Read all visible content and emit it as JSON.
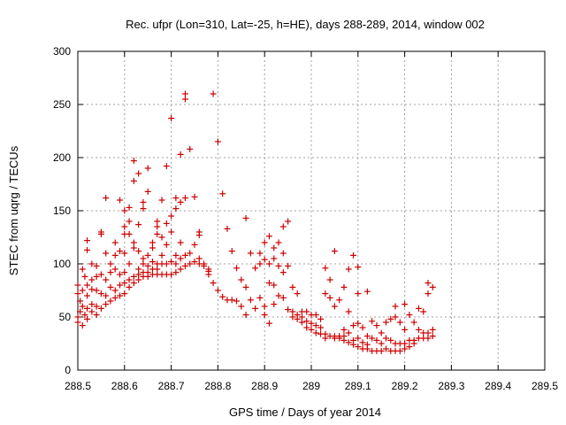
{
  "chart_data": {
    "type": "scatter",
    "title": "Rec. ufpr (Lon=310, Lat=-25, h=HE), days 288-289, 2014, window 002",
    "xlabel": "GPS time / Days of year 2014",
    "ylabel": "STEC from uqrg / TECUs",
    "xlim": [
      288.5,
      289.5
    ],
    "ylim": [
      0,
      300
    ],
    "xticks": [
      288.5,
      288.6,
      288.7,
      288.8,
      288.9,
      289,
      289.1,
      289.2,
      289.3,
      289.4,
      289.5
    ],
    "xtick_labels": [
      "288.5",
      "288.6",
      "288.7",
      "288.8",
      "288.9",
      "289",
      "289.1",
      "289.2",
      "289.3",
      "289.4",
      "289.5"
    ],
    "yticks": [
      0,
      50,
      100,
      150,
      200,
      250,
      300
    ],
    "ytick_labels": [
      "0",
      "50",
      "100",
      "150",
      "200",
      "250",
      "300"
    ],
    "grid": true,
    "marker": "+",
    "color": "#cc0000",
    "series": [
      {
        "name": "STEC",
        "points": [
          [
            288.5,
            80
          ],
          [
            288.5,
            72
          ],
          [
            288.5,
            50
          ],
          [
            288.5,
            45
          ],
          [
            288.505,
            65
          ],
          [
            288.505,
            55
          ],
          [
            288.51,
            95
          ],
          [
            288.51,
            75
          ],
          [
            288.51,
            60
          ],
          [
            288.51,
            42
          ],
          [
            288.515,
            88
          ],
          [
            288.515,
            52
          ],
          [
            288.52,
            122
          ],
          [
            288.52,
            113
          ],
          [
            288.52,
            80
          ],
          [
            288.52,
            70
          ],
          [
            288.52,
            58
          ],
          [
            288.52,
            48
          ],
          [
            288.53,
            100
          ],
          [
            288.53,
            85
          ],
          [
            288.53,
            76
          ],
          [
            288.53,
            62
          ],
          [
            288.53,
            55
          ],
          [
            288.54,
            98
          ],
          [
            288.54,
            88
          ],
          [
            288.54,
            75
          ],
          [
            288.54,
            60
          ],
          [
            288.54,
            52
          ],
          [
            288.55,
            130
          ],
          [
            288.55,
            128
          ],
          [
            288.55,
            90
          ],
          [
            288.55,
            72
          ],
          [
            288.55,
            58
          ],
          [
            288.56,
            162
          ],
          [
            288.56,
            110
          ],
          [
            288.56,
            85
          ],
          [
            288.56,
            70
          ],
          [
            288.56,
            62
          ],
          [
            288.57,
            100
          ],
          [
            288.57,
            92
          ],
          [
            288.57,
            78
          ],
          [
            288.57,
            65
          ],
          [
            288.58,
            120
          ],
          [
            288.58,
            108
          ],
          [
            288.58,
            95
          ],
          [
            288.58,
            75
          ],
          [
            288.58,
            68
          ],
          [
            288.59,
            160
          ],
          [
            288.59,
            112
          ],
          [
            288.59,
            90
          ],
          [
            288.59,
            80
          ],
          [
            288.59,
            70
          ],
          [
            288.6,
            150
          ],
          [
            288.6,
            135
          ],
          [
            288.6,
            128
          ],
          [
            288.6,
            110
          ],
          [
            288.6,
            92
          ],
          [
            288.6,
            82
          ],
          [
            288.6,
            72
          ],
          [
            288.61,
            153
          ],
          [
            288.61,
            140
          ],
          [
            288.61,
            128
          ],
          [
            288.61,
            100
          ],
          [
            288.61,
            85
          ],
          [
            288.61,
            78
          ],
          [
            288.62,
            197
          ],
          [
            288.62,
            178
          ],
          [
            288.62,
            120
          ],
          [
            288.62,
            115
          ],
          [
            288.62,
            88
          ],
          [
            288.62,
            82
          ],
          [
            288.63,
            185
          ],
          [
            288.63,
            137
          ],
          [
            288.63,
            112
          ],
          [
            288.63,
            95
          ],
          [
            288.63,
            90
          ],
          [
            288.63,
            85
          ],
          [
            288.64,
            158
          ],
          [
            288.64,
            152
          ],
          [
            288.64,
            105
          ],
          [
            288.64,
            100
          ],
          [
            288.64,
            92
          ],
          [
            288.64,
            88
          ],
          [
            288.65,
            190
          ],
          [
            288.65,
            168
          ],
          [
            288.65,
            108
          ],
          [
            288.65,
            98
          ],
          [
            288.65,
            92
          ],
          [
            288.65,
            88
          ],
          [
            288.66,
            120
          ],
          [
            288.66,
            115
          ],
          [
            288.66,
            102
          ],
          [
            288.66,
            95
          ],
          [
            288.66,
            90
          ],
          [
            288.67,
            140
          ],
          [
            288.67,
            135
          ],
          [
            288.67,
            128
          ],
          [
            288.67,
            100
          ],
          [
            288.67,
            95
          ],
          [
            288.67,
            90
          ],
          [
            288.68,
            160
          ],
          [
            288.68,
            125
          ],
          [
            288.68,
            108
          ],
          [
            288.68,
            100
          ],
          [
            288.68,
            90
          ],
          [
            288.69,
            192
          ],
          [
            288.69,
            138
          ],
          [
            288.69,
            118
          ],
          [
            288.69,
            100
          ],
          [
            288.69,
            90
          ],
          [
            288.7,
            237
          ],
          [
            288.7,
            145
          ],
          [
            288.7,
            130
          ],
          [
            288.7,
            102
          ],
          [
            288.7,
            90
          ],
          [
            288.71,
            162
          ],
          [
            288.71,
            152
          ],
          [
            288.71,
            108
          ],
          [
            288.71,
            100
          ],
          [
            288.71,
            92
          ],
          [
            288.72,
            203
          ],
          [
            288.72,
            158
          ],
          [
            288.72,
            120
          ],
          [
            288.72,
            105
          ],
          [
            288.72,
            95
          ],
          [
            288.73,
            260
          ],
          [
            288.73,
            255
          ],
          [
            288.73,
            162
          ],
          [
            288.73,
            108
          ],
          [
            288.73,
            98
          ],
          [
            288.74,
            208
          ],
          [
            288.74,
            110
          ],
          [
            288.74,
            100
          ],
          [
            288.75,
            163
          ],
          [
            288.75,
            118
          ],
          [
            288.75,
            102
          ],
          [
            288.76,
            130
          ],
          [
            288.76,
            127
          ],
          [
            288.76,
            105
          ],
          [
            288.76,
            100
          ],
          [
            288.77,
            100
          ],
          [
            288.77,
            98
          ],
          [
            288.78,
            95
          ],
          [
            288.78,
            93
          ],
          [
            288.78,
            90
          ],
          [
            288.79,
            260
          ],
          [
            288.79,
            82
          ],
          [
            288.8,
            215
          ],
          [
            288.8,
            75
          ],
          [
            288.81,
            166
          ],
          [
            288.81,
            69
          ],
          [
            288.82,
            133
          ],
          [
            288.82,
            66
          ],
          [
            288.83,
            112
          ],
          [
            288.83,
            66
          ],
          [
            288.84,
            96
          ],
          [
            288.84,
            65
          ],
          [
            288.85,
            85
          ],
          [
            288.85,
            60
          ],
          [
            288.86,
            143
          ],
          [
            288.86,
            78
          ],
          [
            288.86,
            52
          ],
          [
            288.87,
            110
          ],
          [
            288.87,
            66
          ],
          [
            288.88,
            96
          ],
          [
            288.88,
            58
          ],
          [
            288.89,
            110
          ],
          [
            288.89,
            100
          ],
          [
            288.89,
            68
          ],
          [
            288.9,
            120
          ],
          [
            288.9,
            104
          ],
          [
            288.9,
            60
          ],
          [
            288.9,
            52
          ],
          [
            288.91,
            126
          ],
          [
            288.91,
            100
          ],
          [
            288.91,
            82
          ],
          [
            288.91,
            44
          ],
          [
            288.92,
            115
          ],
          [
            288.92,
            105
          ],
          [
            288.92,
            80
          ],
          [
            288.92,
            62
          ],
          [
            288.93,
            120
          ],
          [
            288.93,
            98
          ],
          [
            288.93,
            70
          ],
          [
            288.94,
            135
          ],
          [
            288.94,
            110
          ],
          [
            288.94,
            92
          ],
          [
            288.94,
            68
          ],
          [
            288.95,
            140
          ],
          [
            288.95,
            98
          ],
          [
            288.95,
            57
          ],
          [
            288.96,
            78
          ],
          [
            288.96,
            55
          ],
          [
            288.96,
            50
          ],
          [
            288.97,
            72
          ],
          [
            288.97,
            52
          ],
          [
            288.97,
            48
          ],
          [
            288.98,
            55
          ],
          [
            288.98,
            50
          ],
          [
            288.98,
            45
          ],
          [
            288.99,
            55
          ],
          [
            288.99,
            46
          ],
          [
            288.99,
            40
          ],
          [
            289.0,
            52
          ],
          [
            289.0,
            44
          ],
          [
            289.0,
            38
          ],
          [
            289.01,
            52
          ],
          [
            289.01,
            42
          ],
          [
            289.01,
            35
          ],
          [
            289.02,
            48
          ],
          [
            289.02,
            40
          ],
          [
            289.02,
            34
          ],
          [
            289.03,
            96
          ],
          [
            289.03,
            72
          ],
          [
            289.03,
            34
          ],
          [
            289.03,
            30
          ],
          [
            289.04,
            85
          ],
          [
            289.04,
            68
          ],
          [
            289.04,
            32
          ],
          [
            289.05,
            112
          ],
          [
            289.05,
            60
          ],
          [
            289.05,
            32
          ],
          [
            289.05,
            30
          ],
          [
            289.06,
            66
          ],
          [
            289.06,
            32
          ],
          [
            289.06,
            30
          ],
          [
            289.07,
            78
          ],
          [
            289.07,
            38
          ],
          [
            289.07,
            32
          ],
          [
            289.07,
            28
          ],
          [
            289.08,
            95
          ],
          [
            289.08,
            55
          ],
          [
            289.08,
            35
          ],
          [
            289.08,
            26
          ],
          [
            289.09,
            108
          ],
          [
            289.09,
            42
          ],
          [
            289.09,
            28
          ],
          [
            289.09,
            24
          ],
          [
            289.1,
            97
          ],
          [
            289.1,
            72
          ],
          [
            289.1,
            44
          ],
          [
            289.1,
            30
          ],
          [
            289.1,
            22
          ],
          [
            289.11,
            40
          ],
          [
            289.11,
            26
          ],
          [
            289.11,
            20
          ],
          [
            289.12,
            74
          ],
          [
            289.12,
            32
          ],
          [
            289.12,
            24
          ],
          [
            289.12,
            20
          ],
          [
            289.13,
            46
          ],
          [
            289.13,
            30
          ],
          [
            289.13,
            18
          ],
          [
            289.14,
            42
          ],
          [
            289.14,
            28
          ],
          [
            289.14,
            18
          ],
          [
            289.15,
            35
          ],
          [
            289.15,
            25
          ],
          [
            289.15,
            18
          ],
          [
            289.16,
            45
          ],
          [
            289.16,
            30
          ],
          [
            289.16,
            20
          ],
          [
            289.17,
            48
          ],
          [
            289.17,
            28
          ],
          [
            289.17,
            18
          ],
          [
            289.18,
            60
          ],
          [
            289.18,
            50
          ],
          [
            289.18,
            25
          ],
          [
            289.18,
            18
          ],
          [
            289.19,
            45
          ],
          [
            289.19,
            25
          ],
          [
            289.19,
            18
          ],
          [
            289.2,
            62
          ],
          [
            289.2,
            38
          ],
          [
            289.2,
            25
          ],
          [
            289.2,
            20
          ],
          [
            289.21,
            52
          ],
          [
            289.21,
            28
          ],
          [
            289.21,
            22
          ],
          [
            289.22,
            45
          ],
          [
            289.22,
            28
          ],
          [
            289.22,
            25
          ],
          [
            289.23,
            58
          ],
          [
            289.23,
            38
          ],
          [
            289.23,
            30
          ],
          [
            289.24,
            55
          ],
          [
            289.24,
            35
          ],
          [
            289.24,
            30
          ],
          [
            289.25,
            82
          ],
          [
            289.25,
            72
          ],
          [
            289.25,
            35
          ],
          [
            289.25,
            30
          ],
          [
            289.26,
            78
          ],
          [
            289.26,
            38
          ],
          [
            289.26,
            32
          ]
        ]
      }
    ]
  }
}
